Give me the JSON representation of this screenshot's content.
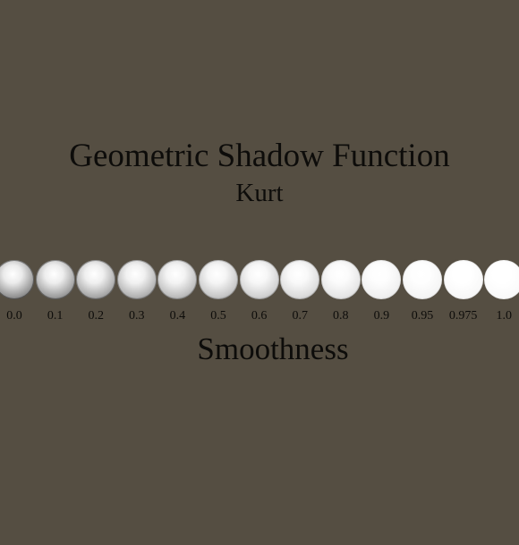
{
  "title": "Geometric Shadow Function",
  "subtitle": "Kurt",
  "axis_label": "Smoothness",
  "spheres": [
    {
      "label": "0.0",
      "value": 0.0
    },
    {
      "label": "0.1",
      "value": 0.1
    },
    {
      "label": "0.2",
      "value": 0.2
    },
    {
      "label": "0.3",
      "value": 0.3
    },
    {
      "label": "0.4",
      "value": 0.4
    },
    {
      "label": "0.5",
      "value": 0.5
    },
    {
      "label": "0.6",
      "value": 0.6
    },
    {
      "label": "0.7",
      "value": 0.7
    },
    {
      "label": "0.8",
      "value": 0.8
    },
    {
      "label": "0.9",
      "value": 0.9
    },
    {
      "label": "0.95",
      "value": 0.95
    },
    {
      "label": "0.975",
      "value": 0.975
    },
    {
      "label": "1.0",
      "value": 1.0
    }
  ],
  "colors": {
    "background": "#554e42",
    "text": "#0d0c0a",
    "sphere_highlight": "#ffffff"
  }
}
